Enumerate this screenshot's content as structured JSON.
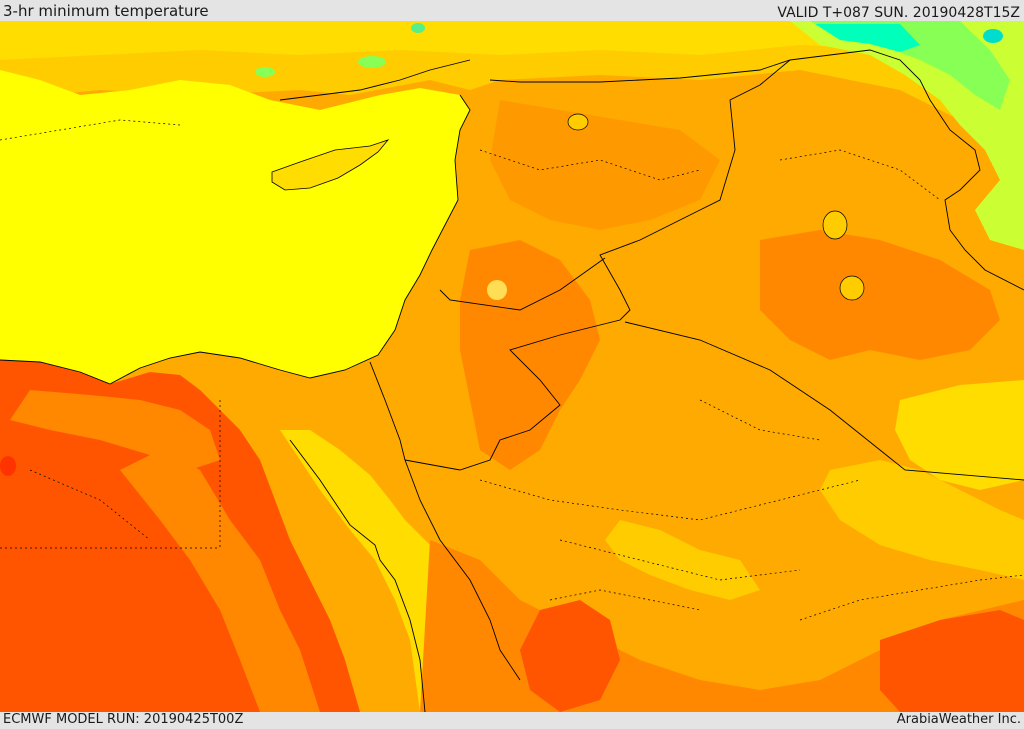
{
  "header": {
    "title": "3-hr minimum temperature",
    "valid_time": "VALID T+087 SUN. 20190428T15Z"
  },
  "map": {
    "field": "3-hr minimum temperature",
    "palette": {
      "sea_yellow": "#ffff00",
      "pale_yellow": "#ffdd00",
      "light_orange": "#ffcc00",
      "orange": "#ffaa00",
      "deep_orange": "#ff8800",
      "red_orange": "#ff5500",
      "yellow_green": "#ccff33",
      "light_green": "#88ff55",
      "cyan": "#00ffbb"
    },
    "border_color": "#000000"
  },
  "footer": {
    "model_run": "ECMWF MODEL RUN: 20190425T00Z",
    "credit": "ArabiaWeather Inc."
  }
}
